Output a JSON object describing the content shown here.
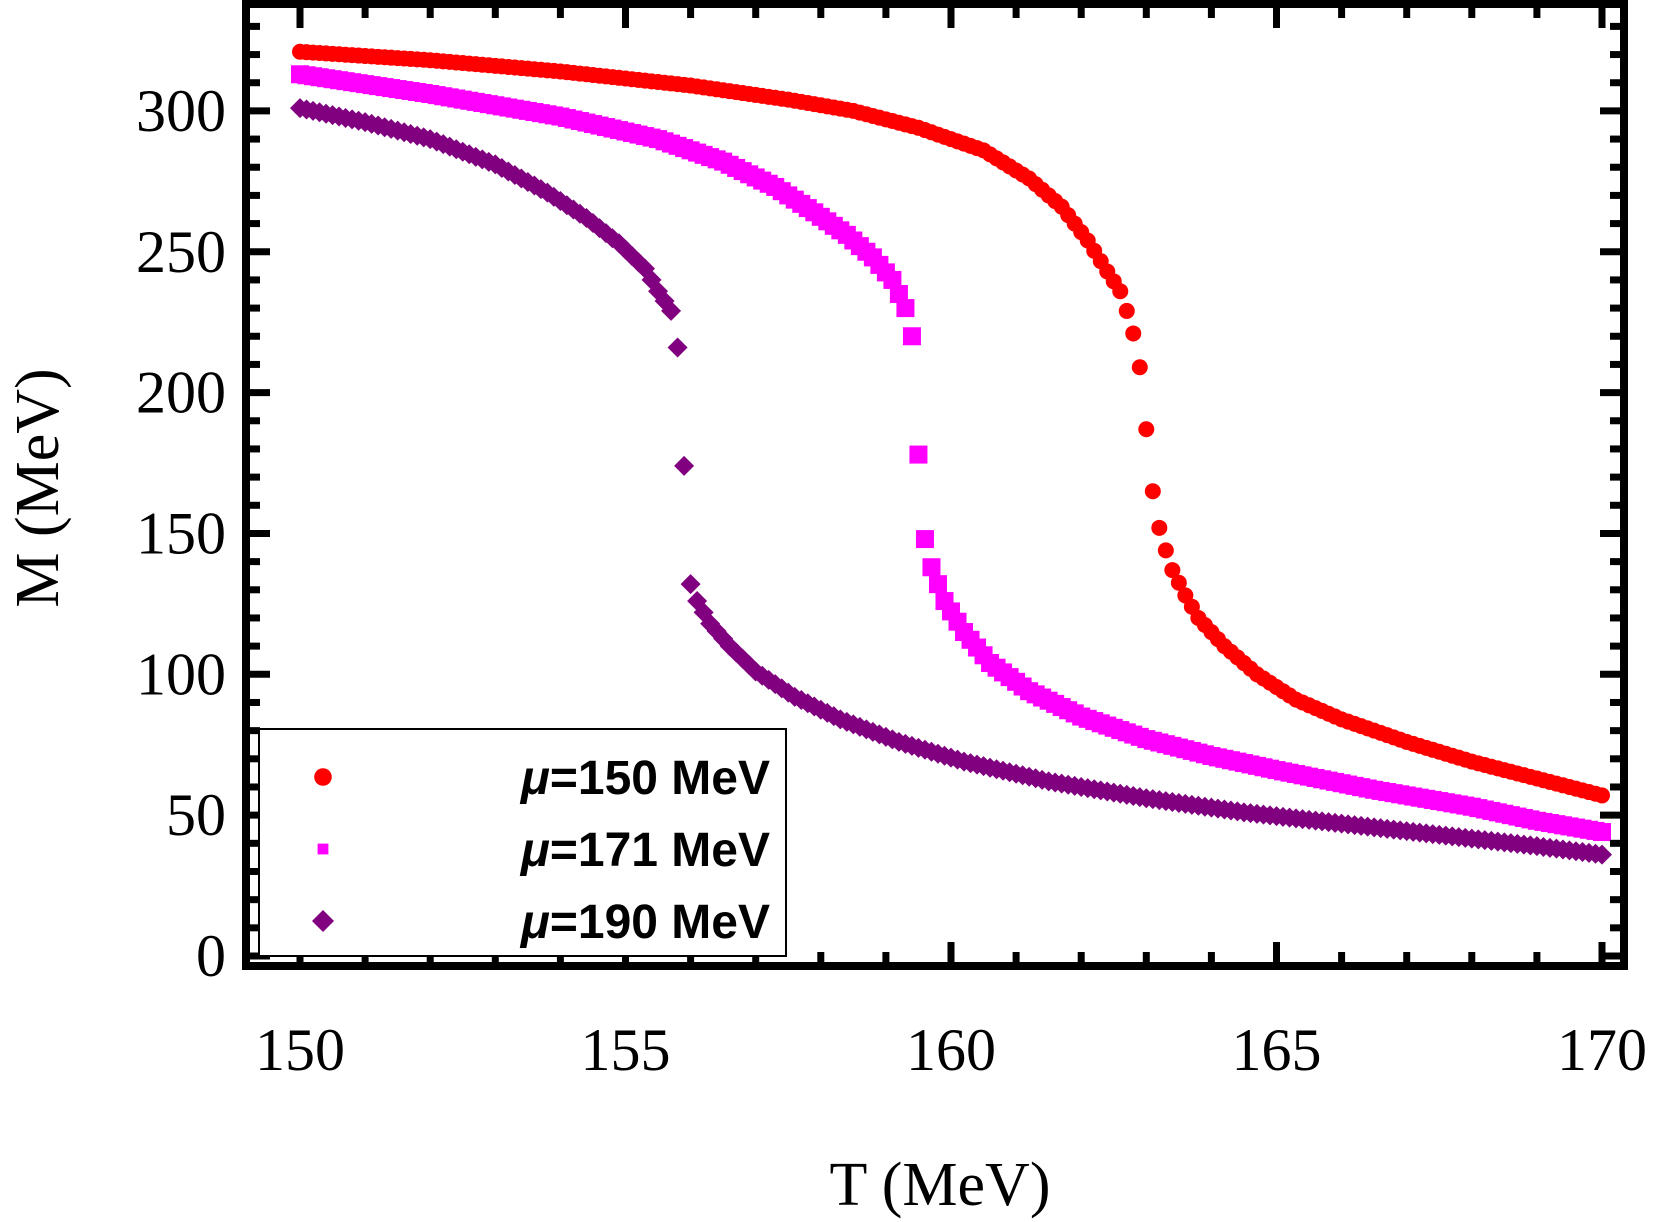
{
  "chart_data": {
    "type": "scatter",
    "title": "",
    "xlabel": "T (MeV)",
    "ylabel": "M (MeV)",
    "xlim": [
      149.2,
      170.4
    ],
    "ylim": [
      0,
      340
    ],
    "xticks": [
      150,
      155,
      160,
      165,
      170
    ],
    "yticks": [
      0,
      50,
      100,
      150,
      200,
      250,
      300
    ],
    "xtick_labels": [
      "150",
      "155",
      "160",
      "165",
      "170"
    ],
    "ytick_labels": [
      "0",
      "50",
      "100",
      "150",
      "200",
      "250",
      "300"
    ],
    "grid": false,
    "legend_position": "bottom-left",
    "series": [
      {
        "name": "μ=150 MeV",
        "mu_prefix": "μ",
        "label_rest": "=150 MeV",
        "marker": "circle",
        "color": "#ff0000",
        "points": [
          [
            150,
            321
          ],
          [
            152,
            318
          ],
          [
            154,
            314
          ],
          [
            156,
            309
          ],
          [
            157.5,
            304
          ],
          [
            158.5,
            300
          ],
          [
            159.5,
            294
          ],
          [
            160.5,
            286
          ],
          [
            161.2,
            276
          ],
          [
            161.7,
            266
          ],
          [
            162.1,
            254
          ],
          [
            162.4,
            243
          ],
          [
            162.6,
            236
          ],
          [
            162.7,
            229
          ],
          [
            162.8,
            221
          ],
          [
            162.9,
            209
          ],
          [
            163.0,
            187
          ],
          [
            163.1,
            165
          ],
          [
            163.2,
            152
          ],
          [
            163.3,
            144
          ],
          [
            163.4,
            137
          ],
          [
            163.6,
            128
          ],
          [
            163.8,
            120
          ],
          [
            164.2,
            110
          ],
          [
            164.7,
            100
          ],
          [
            165.3,
            91
          ],
          [
            166,
            84
          ],
          [
            167,
            76
          ],
          [
            168,
            69
          ],
          [
            169,
            63
          ],
          [
            170,
            57
          ]
        ]
      },
      {
        "name": "μ=171 MeV",
        "mu_prefix": "μ",
        "label_rest": "=171 MeV",
        "marker": "square",
        "color": "#ff00ff",
        "points": [
          [
            150,
            313
          ],
          [
            152,
            306
          ],
          [
            154,
            298
          ],
          [
            155.5,
            290
          ],
          [
            156.5,
            282
          ],
          [
            157.3,
            273
          ],
          [
            157.9,
            264
          ],
          [
            158.4,
            256
          ],
          [
            158.8,
            248
          ],
          [
            159.1,
            240
          ],
          [
            159.3,
            230
          ],
          [
            159.4,
            220
          ],
          [
            159.5,
            178
          ],
          [
            159.6,
            148
          ],
          [
            159.7,
            138
          ],
          [
            159.9,
            126
          ],
          [
            160.2,
            115
          ],
          [
            160.6,
            104
          ],
          [
            161.2,
            94
          ],
          [
            162,
            85
          ],
          [
            163,
            77
          ],
          [
            164,
            71
          ],
          [
            165,
            66
          ],
          [
            166.5,
            59
          ],
          [
            168,
            53
          ],
          [
            169,
            48
          ],
          [
            170,
            44
          ]
        ]
      },
      {
        "name": "μ=190 MeV",
        "mu_prefix": "μ",
        "label_rest": "=190 MeV",
        "marker": "diamond",
        "color": "#800080",
        "points": [
          [
            150,
            301
          ],
          [
            151,
            296
          ],
          [
            152,
            290
          ],
          [
            153,
            281
          ],
          [
            153.8,
            271
          ],
          [
            154.4,
            262
          ],
          [
            154.9,
            253
          ],
          [
            155.3,
            244
          ],
          [
            155.5,
            236
          ],
          [
            155.7,
            229
          ],
          [
            155.8,
            216
          ],
          [
            156.0,
            132
          ],
          [
            156.1,
            126
          ],
          [
            156.3,
            118
          ],
          [
            156.6,
            110
          ],
          [
            157,
            101
          ],
          [
            157.6,
            92
          ],
          [
            158.3,
            84
          ],
          [
            159.2,
            76
          ],
          [
            160.2,
            69
          ],
          [
            161.5,
            62
          ],
          [
            163,
            56
          ],
          [
            164.5,
            51
          ],
          [
            166,
            47
          ],
          [
            167.5,
            43
          ],
          [
            169,
            39
          ],
          [
            170,
            36
          ]
        ]
      }
    ]
  }
}
